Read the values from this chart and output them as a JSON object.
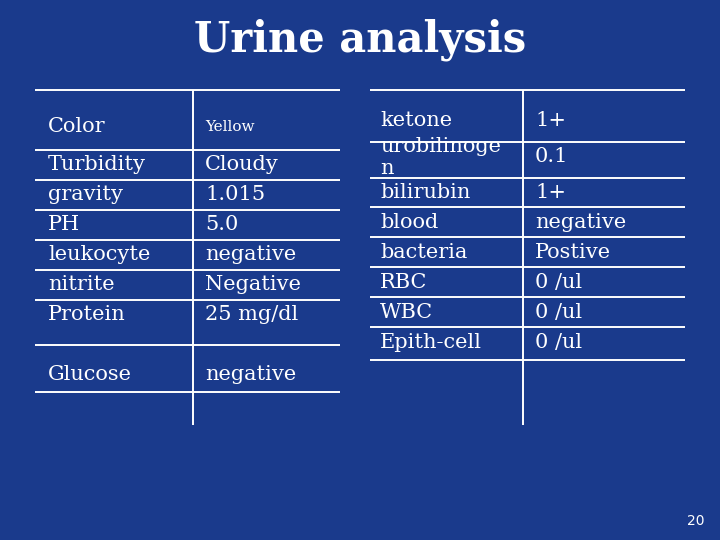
{
  "title": "Urine analysis",
  "background_color": "#1a3a8c",
  "title_color": "#ffffff",
  "text_color": "#ffffff",
  "line_color": "#ffffff",
  "left_table": [
    [
      "Color",
      "Yellow"
    ],
    [
      "Turbidity",
      "Cloudy"
    ],
    [
      "gravity",
      "1.015"
    ],
    [
      "PH",
      "5.0"
    ],
    [
      "leukocyte",
      "negative"
    ],
    [
      "nitrite",
      "Negative"
    ],
    [
      "Protein",
      "25 mg/dl"
    ],
    [
      "Glucose",
      "negative"
    ]
  ],
  "right_table": [
    [
      "ketone",
      "1+"
    ],
    [
      "urobilinoge\nn",
      "0.1"
    ],
    [
      "bilirubin",
      "1+"
    ],
    [
      "blood",
      "negative"
    ],
    [
      "bacteria",
      "Postive"
    ],
    [
      "RBC",
      "0 /ul"
    ],
    [
      "WBC",
      "0 /ul"
    ],
    [
      "Epith-cell",
      "0 /ul"
    ]
  ],
  "page_number": "20",
  "title_fontsize": 30,
  "table_fontsize": 15,
  "yellow_fontsize": 11
}
